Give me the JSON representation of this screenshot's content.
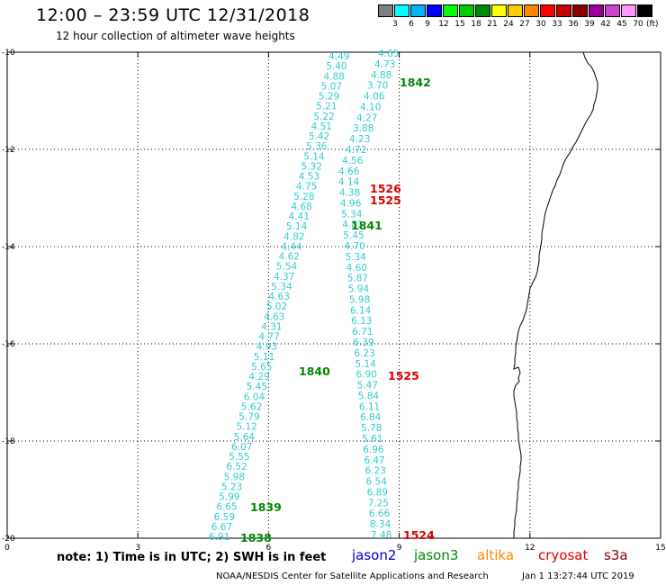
{
  "title": "12:00 – 23:59 UTC 12/31/2018",
  "subtitle": "12 hour collection of altimeter wave heights",
  "legend": {
    "unit": "(ft)",
    "swatches": [
      {
        "color": "#808080",
        "label": "3"
      },
      {
        "color": "#00ffff",
        "label": "6"
      },
      {
        "color": "#00b4ff",
        "label": "9"
      },
      {
        "color": "#0000ff",
        "label": "12"
      },
      {
        "color": "#00ff00",
        "label": "15"
      },
      {
        "color": "#00cc00",
        "label": "18"
      },
      {
        "color": "#008800",
        "label": "21"
      },
      {
        "color": "#ffff00",
        "label": "24"
      },
      {
        "color": "#ffcc00",
        "label": "27"
      },
      {
        "color": "#ff8800",
        "label": "30"
      },
      {
        "color": "#ff0000",
        "label": "33"
      },
      {
        "color": "#cc0000",
        "label": "36"
      },
      {
        "color": "#880000",
        "label": "39"
      },
      {
        "color": "#990099",
        "label": "42"
      },
      {
        "color": "#cc44cc",
        "label": "45"
      },
      {
        "color": "#ff99ff",
        "label": "70"
      },
      {
        "color": "#000000",
        "label": ""
      }
    ]
  },
  "axes": {
    "lat_labels": [
      "-10",
      "-12",
      "-14",
      "-16",
      "-18",
      "-20"
    ],
    "lon_labels": [
      "0",
      "3",
      "6",
      "9",
      "12",
      "15"
    ]
  },
  "track_a": {
    "color": "#33cccc",
    "values": [
      "4.49",
      "5.40",
      "4.88",
      "5.07",
      "5.29",
      "5.21",
      "5.22",
      "4.51",
      "5.42",
      "5.36",
      "5.14",
      "5.32",
      "4.53",
      "4.75",
      "5.28",
      "4.68",
      "4.41",
      "5.14",
      "4.82",
      "4.44",
      "4.62",
      "5.54",
      "4.37",
      "5.34",
      "4.63",
      "5.02",
      "4.63",
      "4.31",
      "4.77",
      "4.93",
      "5.11",
      "5.65",
      "4.29",
      "5.45",
      "6.04",
      "5.62",
      "5.79",
      "5.12",
      "5.64",
      "6.07",
      "5.55",
      "6.52",
      "5.98",
      "5.23",
      "5.99",
      "6.65",
      "6.59",
      "6.67",
      "6.91"
    ]
  },
  "track_b": {
    "color": "#33cccc",
    "values": [
      "4.65",
      "4.73",
      "4.88",
      "3.70",
      "4.06",
      "4.10",
      "4.27",
      "3.88",
      "4.23",
      "4.72",
      "4.56",
      "4.66",
      "4.14",
      "4.38",
      "4.96",
      "5.34",
      "4.81",
      "5.45",
      "4.70",
      "5.34",
      "4.60",
      "5.87",
      "5.94",
      "5.98",
      "6.14",
      "6.13",
      "6.71",
      "6.39",
      "6.23",
      "5.14",
      "6.90",
      "5.47",
      "5.84",
      "6.11",
      "6.84",
      "5.78",
      "5.61",
      "6.96",
      "6.47",
      "6.23",
      "6.54",
      "6.89",
      "7.25",
      "6.66",
      "8.34",
      "7.48"
    ]
  },
  "pass_labels": [
    {
      "text": "1842",
      "color": "#008800"
    },
    {
      "text": "1526",
      "color": "#dd0000"
    },
    {
      "text": "1525",
      "color": "#dd0000"
    },
    {
      "text": "1841",
      "color": "#008800"
    },
    {
      "text": "1840",
      "color": "#008800"
    },
    {
      "text": "1525",
      "color": "#dd0000"
    },
    {
      "text": "1839",
      "color": "#008800"
    },
    {
      "text": "1838",
      "color": "#008800"
    },
    {
      "text": "1524",
      "color": "#dd0000"
    }
  ],
  "note": "note:  1) Time is in UTC;  2) SWH is in feet",
  "satellites": [
    {
      "name": "jason2",
      "color": "#0000cc"
    },
    {
      "name": "jason3",
      "color": "#008800"
    },
    {
      "name": "altika",
      "color": "#ff8800"
    },
    {
      "name": "cryosat",
      "color": "#dd0000"
    },
    {
      "name": "s3a",
      "color": "#880000"
    }
  ],
  "footer": "NOAA/NESDIS Center for Satellite Applications and Research",
  "footer_time": "Jan  1 13:27:44 UTC 2019"
}
